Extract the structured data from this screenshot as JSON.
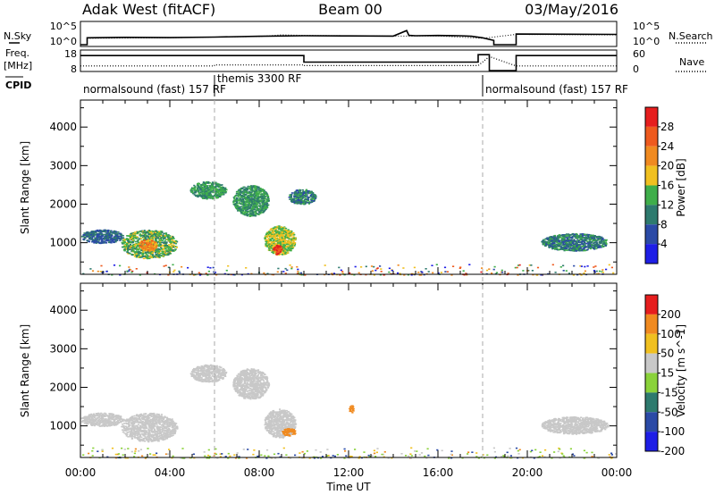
{
  "header": {
    "station": "Adak West (fitACF)",
    "beam": "Beam 00",
    "date": "03/May/2016"
  },
  "side_labels": {
    "nsky": "N.Sky",
    "nsearch": "N.Search",
    "freq_line1": "Freq.",
    "freq_line2": "[MHz]",
    "nave": "Nave",
    "cpid": "CPID"
  },
  "strip_ticks": {
    "noise_left_top": "10^5",
    "noise_left_bottom": "10^0",
    "noise_right_top": "10^5",
    "noise_right_bottom": "10^0",
    "freq_left_top": "18",
    "freq_left_bottom": "8",
    "nave_right_top": "60",
    "nave_right_bottom": "0"
  },
  "cpid_labels": [
    {
      "text": "normalsound (fast) 157 RF",
      "start_hour": 0.0
    },
    {
      "text": "themis 3300 RF",
      "start_hour": 6.0
    },
    {
      "text": "normalsound (fast) 157 RF",
      "start_hour": 18.0
    }
  ],
  "axes": {
    "ylabel": "Slant Range [km]",
    "xlabel": "Time UT",
    "y_ticks": [
      "1000",
      "2000",
      "3000",
      "4000"
    ],
    "x_ticks": [
      "00:00",
      "04:00",
      "08:00",
      "12:00",
      "16:00",
      "20:00",
      "00:00"
    ]
  },
  "colorbars": {
    "power": {
      "label": "Power [dB]",
      "ticks": [
        "4",
        "8",
        "12",
        "16",
        "20",
        "24",
        "28"
      ],
      "colors": [
        "#1e1ee6",
        "#2b4aa6",
        "#2e7a6e",
        "#3fae4a",
        "#f0c020",
        "#f08a20",
        "#ee5a1e",
        "#e61e1e"
      ]
    },
    "velocity": {
      "label": "Velocity [m s^-1]",
      "ticks": [
        "200",
        "100",
        "50",
        "15",
        "-15",
        "-50",
        "-100",
        "-200"
      ],
      "colors": [
        "#1e1ee6",
        "#2b4aa6",
        "#2e7a6e",
        "#8ad23a",
        "#c8c8c8",
        "#f0c020",
        "#f08a20",
        "#e61e1e"
      ]
    }
  },
  "chart_data": [
    {
      "type": "line",
      "title": "N.Sky / N.Search",
      "x_units": "hours UT",
      "series": [
        {
          "name": "N.Sky",
          "x": [
            0,
            0.3,
            0.3,
            2,
            4,
            6,
            8,
            10,
            12,
            14,
            14.6,
            14.7,
            15,
            16,
            17,
            17.5,
            18,
            18.5,
            18.5,
            19.5,
            19.5,
            24
          ],
          "values": [
            1,
            1,
            40,
            50,
            45,
            60,
            90,
            120,
            110,
            100,
            2000,
            150,
            120,
            140,
            120,
            90,
            40,
            10,
            0,
            0,
            300,
            250
          ]
        },
        {
          "name": "N.Search",
          "x": [
            0.3,
            2,
            4,
            6,
            8,
            9,
            10,
            12,
            14,
            16,
            18,
            19.5,
            24
          ],
          "values": [
            30,
            35,
            40,
            60,
            80,
            200,
            150,
            120,
            100,
            110,
            30,
            250,
            200
          ]
        }
      ]
    },
    {
      "type": "line",
      "title": "Freq. / Nave",
      "x_units": "hours UT",
      "series": [
        {
          "name": "Freq. [MHz]",
          "x": [
            0,
            6,
            10,
            10,
            17.8,
            17.8,
            18.3,
            18.3,
            19.5,
            19.5,
            24
          ],
          "values": [
            16,
            16,
            16,
            12.5,
            12.5,
            16.5,
            16.5,
            8,
            8,
            16,
            16
          ]
        },
        {
          "name": "Nave",
          "x": [
            0,
            6,
            6,
            10,
            10,
            17.8,
            18.3,
            19.5,
            24
          ],
          "values": [
            15,
            15,
            18,
            18,
            16,
            16,
            45,
            15,
            15
          ]
        }
      ]
    },
    {
      "type": "heatmap",
      "title": "Power [dB]",
      "xlabel": "Time UT",
      "ylabel": "Slant Range [km]",
      "xlim": [
        0,
        24
      ],
      "ylim": [
        180,
        4700
      ],
      "scatter_regions": [
        {
          "t0": 0.0,
          "t1": 1.9,
          "r0": 1000,
          "r1": 1350,
          "level": 8
        },
        {
          "t0": 1.8,
          "t1": 4.3,
          "r0": 600,
          "r1": 1350,
          "level": 14
        },
        {
          "t0": 2.6,
          "t1": 3.4,
          "r0": 800,
          "r1": 1100,
          "level": 22
        },
        {
          "t0": 4.9,
          "t1": 6.5,
          "r0": 2150,
          "r1": 2600,
          "level": 12
        },
        {
          "t0": 6.8,
          "t1": 8.4,
          "r0": 1700,
          "r1": 2500,
          "level": 12
        },
        {
          "t0": 8.2,
          "t1": 9.6,
          "r0": 700,
          "r1": 1450,
          "level": 16
        },
        {
          "t0": 8.6,
          "t1": 9.0,
          "r0": 700,
          "r1": 950,
          "level": 28
        },
        {
          "t0": 9.3,
          "t1": 10.5,
          "r0": 2000,
          "r1": 2400,
          "level": 10
        },
        {
          "t0": 20.6,
          "t1": 23.6,
          "r0": 800,
          "r1": 1250,
          "level": 10
        },
        {
          "t0": 0.0,
          "t1": 24.0,
          "r0": 180,
          "r1": 450,
          "level": 14
        }
      ]
    },
    {
      "type": "heatmap",
      "title": "Velocity [m s^-1]",
      "xlabel": "Time UT",
      "ylabel": "Slant Range [km]",
      "xlim": [
        0,
        24
      ],
      "ylim": [
        180,
        4700
      ],
      "scatter_regions": [
        {
          "t0": 0.0,
          "t1": 1.9,
          "r0": 1000,
          "r1": 1350,
          "level": 0
        },
        {
          "t0": 1.8,
          "t1": 4.3,
          "r0": 600,
          "r1": 1350,
          "level": 0
        },
        {
          "t0": 4.9,
          "t1": 6.5,
          "r0": 2150,
          "r1": 2600,
          "level": 0
        },
        {
          "t0": 6.8,
          "t1": 8.4,
          "r0": 1700,
          "r1": 2500,
          "level": 0
        },
        {
          "t0": 8.2,
          "t1": 9.6,
          "r0": 700,
          "r1": 1450,
          "level": 0
        },
        {
          "t0": 9.0,
          "t1": 9.6,
          "r0": 750,
          "r1": 950,
          "level": -80
        },
        {
          "t0": 12.0,
          "t1": 12.2,
          "r0": 1350,
          "r1": 1550,
          "level": -60
        },
        {
          "t0": 20.6,
          "t1": 23.6,
          "r0": 800,
          "r1": 1250,
          "level": 0
        },
        {
          "t0": 0.0,
          "t1": 24.0,
          "r0": 180,
          "r1": 450,
          "level": 20
        }
      ]
    }
  ]
}
